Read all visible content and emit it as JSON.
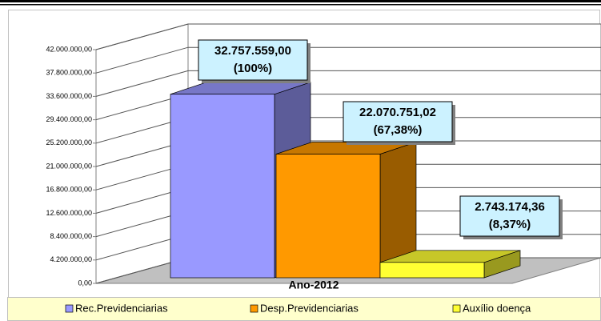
{
  "chart_data": {
    "type": "bar3d",
    "categories": [
      "Ano-2012"
    ],
    "series": [
      {
        "name": "Rec.Previdenciarias",
        "color": "#9999ff",
        "values": [
          32757559.0
        ],
        "value_labels": [
          "32.757.559,00"
        ],
        "percent_labels": [
          "(100%)"
        ]
      },
      {
        "name": "Desp.Previdenciarias",
        "color": "#ff9900",
        "values": [
          22070751.02
        ],
        "value_labels": [
          "22.070.751,02"
        ],
        "percent_labels": [
          "(67,38%)"
        ]
      },
      {
        "name": "Auxílio doença",
        "color": "#ffff33",
        "values": [
          2743174.36
        ],
        "value_labels": [
          "2.743.174,36"
        ],
        "percent_labels": [
          "(8,37%)"
        ]
      }
    ],
    "ylim": [
      0,
      42000000
    ],
    "yticks": [
      {
        "value": 0,
        "label": "0,00"
      },
      {
        "value": 4200000,
        "label": "4.200.000,00"
      },
      {
        "value": 8400000,
        "label": "8.400.000,00"
      },
      {
        "value": 12600000,
        "label": "12.600.000,00"
      },
      {
        "value": 16800000,
        "label": "16.800.000,00"
      },
      {
        "value": 21000000,
        "label": "21.000.000,00"
      },
      {
        "value": 25200000,
        "label": "25.200.000,00"
      },
      {
        "value": 29400000,
        "label": "29.400.000,00"
      },
      {
        "value": 33600000,
        "label": "33.600.000,00"
      },
      {
        "value": 37800000,
        "label": "37.800.000,00"
      },
      {
        "value": 42000000,
        "label": "42.000.000,00"
      }
    ],
    "grid": true,
    "legend": "bottom"
  }
}
